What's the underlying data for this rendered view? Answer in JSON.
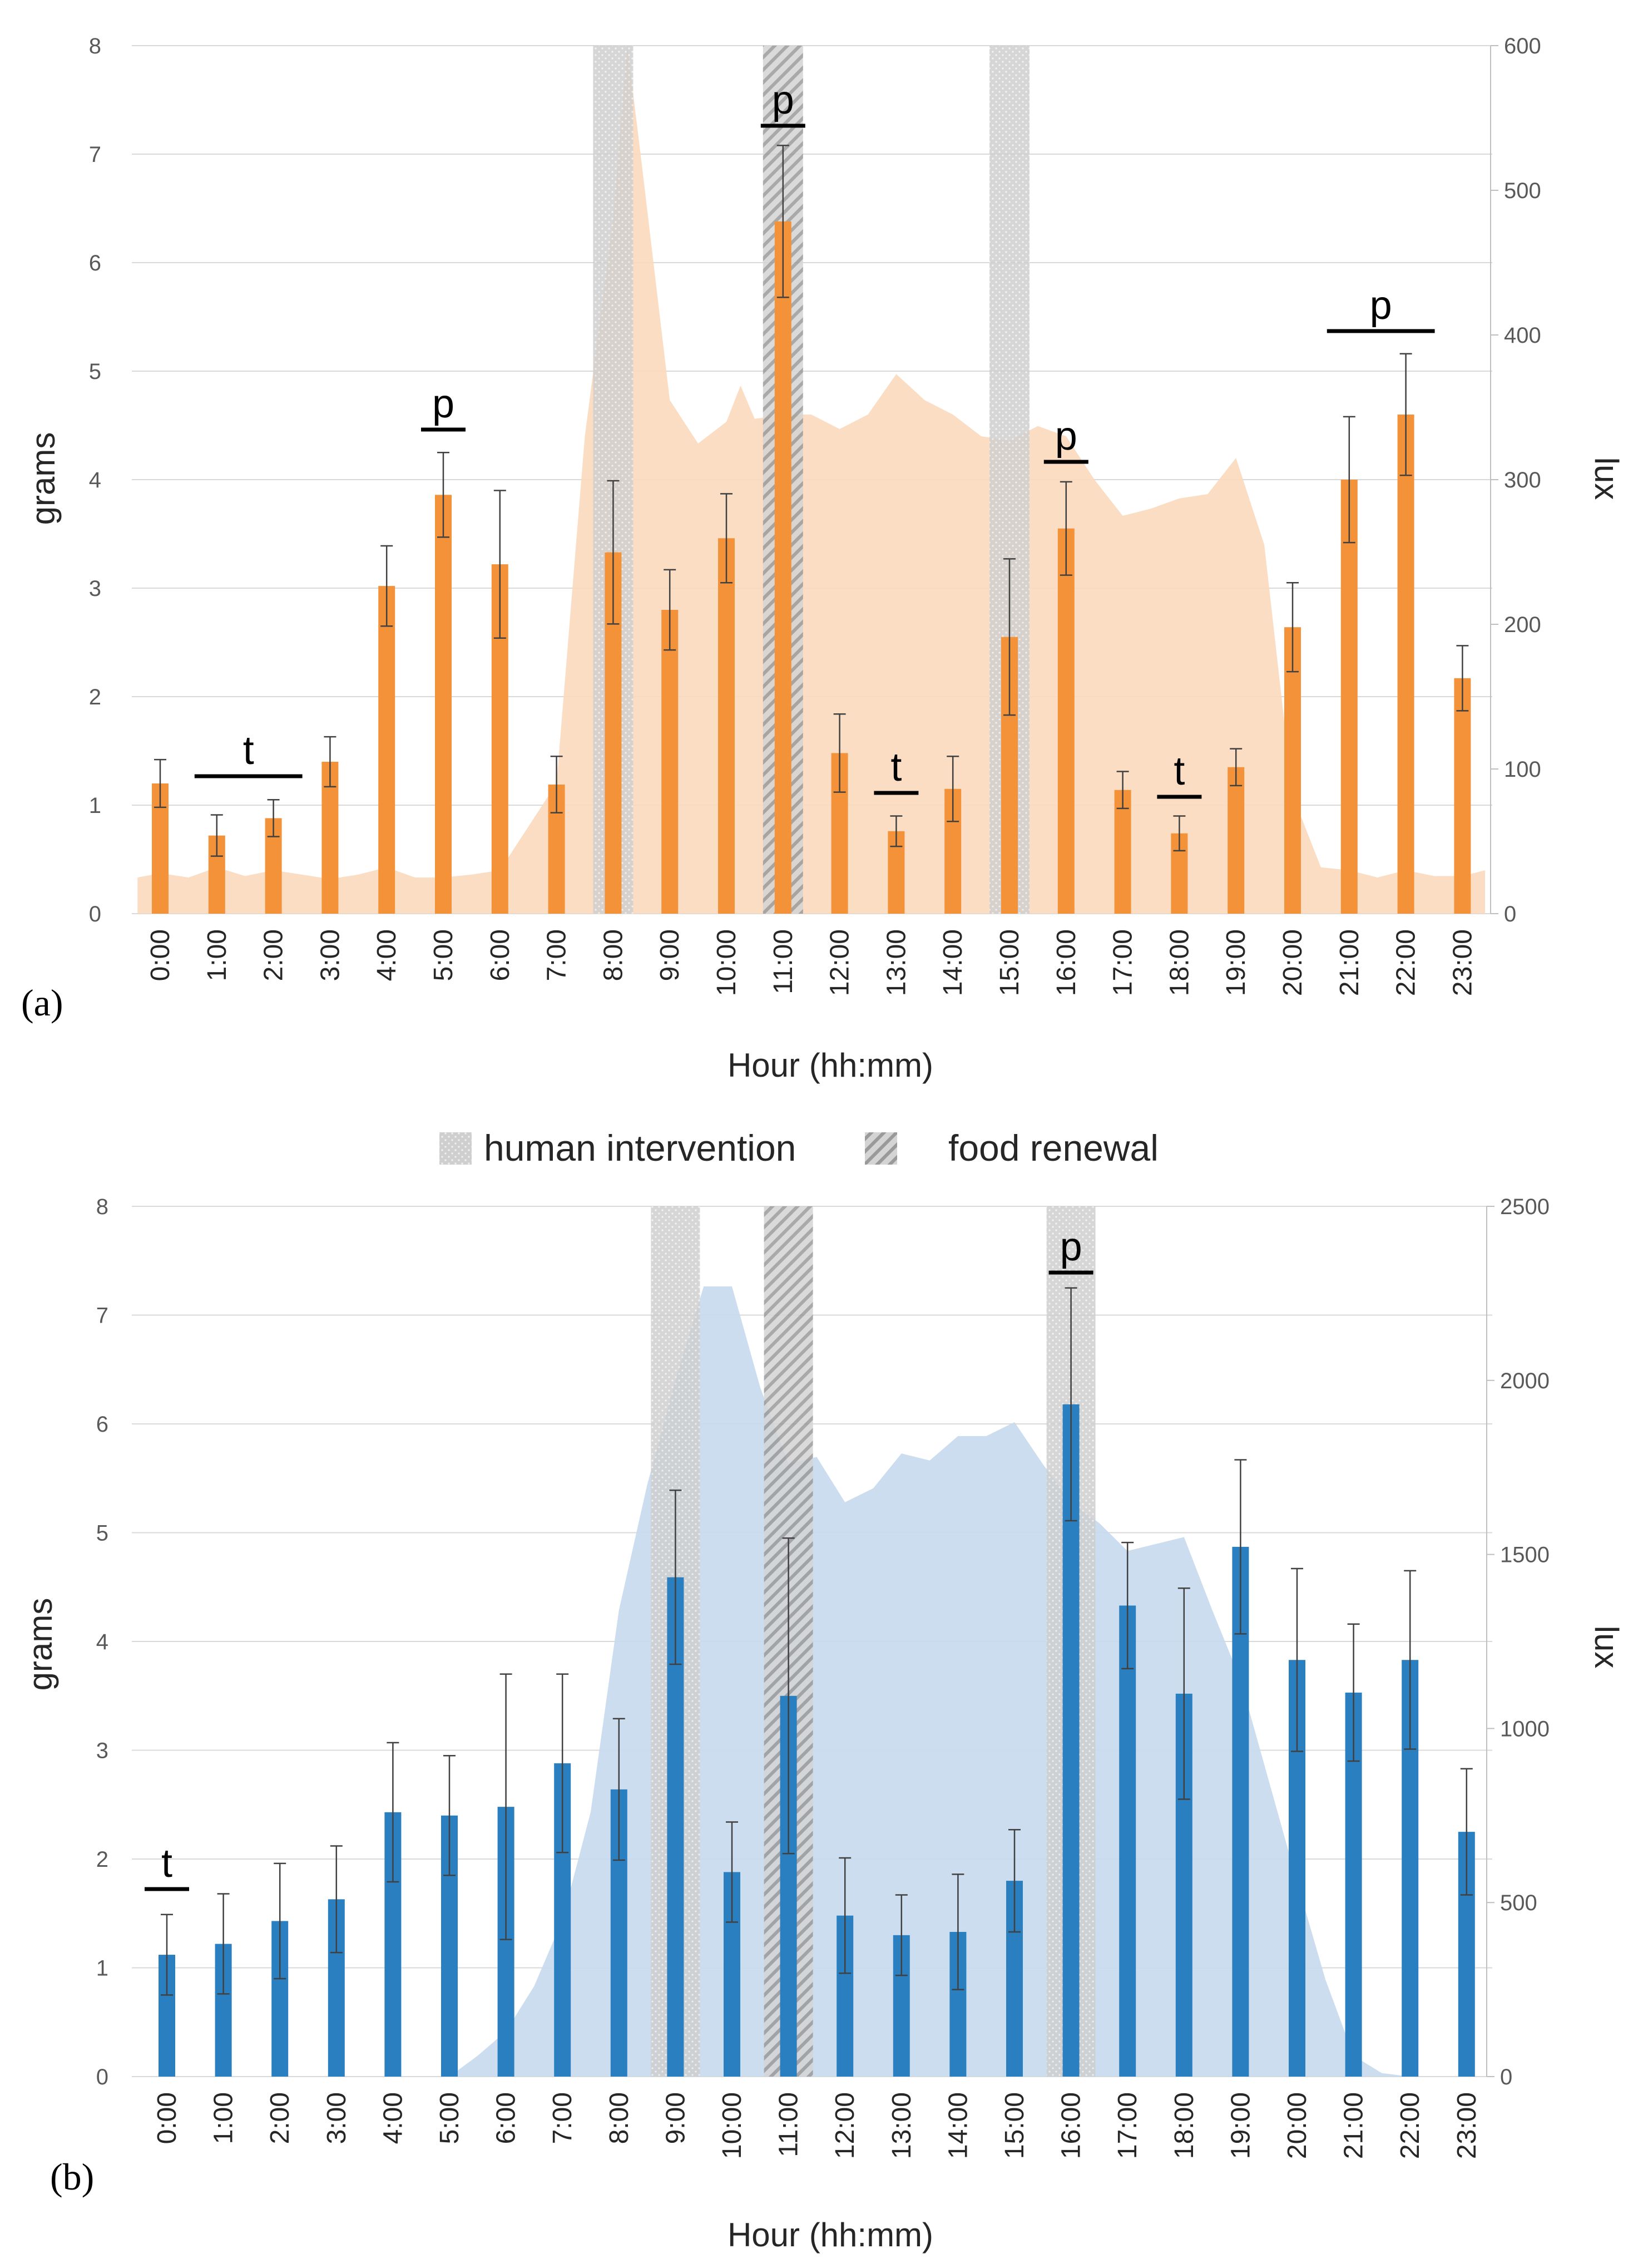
{
  "legend": {
    "human_intervention": "human intervention",
    "food_renewal": "food renewal"
  },
  "colors": {
    "orange_bar": "#f4923a",
    "orange_area": "#fbd9bd",
    "blue_bar": "#2a7fc0",
    "blue_area": "#c5d9ed",
    "grid": "#d9d9d9",
    "intervention": "#c8c8c8"
  },
  "chart_data": [
    {
      "panel_label": "(a)",
      "type": "bar",
      "title": "",
      "xlabel": "Hour (hh:mm)",
      "ylabel": "grams",
      "y2label": "lux",
      "ylim": [
        0,
        8
      ],
      "y2lim": [
        0,
        600
      ],
      "yticks": [
        "0",
        "1",
        "2",
        "3",
        "4",
        "5",
        "6",
        "7",
        "8"
      ],
      "y2ticks": [
        "0",
        "100",
        "200",
        "300",
        "400",
        "500",
        "600"
      ],
      "categories": [
        "0:00",
        "1:00",
        "2:00",
        "3:00",
        "4:00",
        "5:00",
        "6:00",
        "7:00",
        "8:00",
        "9:00",
        "10:00",
        "11:00",
        "12:00",
        "13:00",
        "14:00",
        "15:00",
        "16:00",
        "17:00",
        "18:00",
        "19:00",
        "20:00",
        "21:00",
        "22:00",
        "23:00"
      ],
      "series": [
        {
          "name": "grams",
          "values": [
            1.2,
            0.72,
            0.88,
            1.4,
            3.02,
            3.86,
            3.22,
            1.19,
            3.33,
            2.8,
            3.46,
            6.38,
            1.48,
            0.76,
            1.15,
            2.55,
            3.55,
            1.14,
            0.74,
            1.35,
            2.64,
            4.0,
            4.6,
            2.17
          ],
          "errors": [
            0.22,
            0.19,
            0.17,
            0.23,
            0.37,
            0.39,
            0.68,
            0.26,
            0.66,
            0.37,
            0.41,
            0.7,
            0.36,
            0.14,
            0.3,
            0.72,
            0.43,
            0.17,
            0.16,
            0.17,
            0.41,
            0.58,
            0.56,
            0.3
          ]
        }
      ],
      "lux": {
        "x": [
          -0.4,
          0,
          0.5,
          1,
          1.5,
          2,
          2.5,
          3,
          3.5,
          4,
          4.5,
          5,
          5.5,
          6,
          6.5,
          7,
          7.5,
          8,
          8.25,
          8.5,
          9,
          9.5,
          10,
          10.25,
          10.5,
          11,
          11.5,
          12,
          12.5,
          13,
          13.5,
          14,
          14.5,
          15,
          15.5,
          16,
          16.5,
          17,
          17.5,
          18,
          18.5,
          19,
          19.5,
          20,
          20.5,
          21,
          21.5,
          22,
          22.5,
          23,
          23.4
        ],
        "values": [
          25,
          28,
          25,
          32,
          26,
          30,
          27,
          24,
          27,
          32,
          25,
          25,
          27,
          30,
          60,
          90,
          330,
          480,
          600,
          520,
          355,
          325,
          340,
          365,
          342,
          345,
          345,
          335,
          345,
          373,
          355,
          345,
          330,
          327,
          337,
          330,
          300,
          275,
          280,
          287,
          290,
          315,
          255,
          82,
          32,
          30,
          25,
          30,
          26,
          26,
          30
        ]
      },
      "human_intervention_hours": [
        "8:00",
        "15:00"
      ],
      "food_renewal_hours": [
        "11:00"
      ],
      "annotations": [
        {
          "text": "t",
          "from": "1:00",
          "to": "2:00"
        },
        {
          "text": "p",
          "from": "5:00",
          "to": "5:00"
        },
        {
          "text": "p",
          "from": "11:00",
          "to": "11:00"
        },
        {
          "text": "t",
          "from": "13:00",
          "to": "13:00"
        },
        {
          "text": "p",
          "from": "16:00",
          "to": "16:00"
        },
        {
          "text": "t",
          "from": "18:00",
          "to": "18:00"
        },
        {
          "text": "p",
          "from": "21:00",
          "to": "22:00"
        }
      ]
    },
    {
      "panel_label": "(b)",
      "type": "bar",
      "title": "",
      "xlabel": "Hour (hh:mm)",
      "ylabel": "grams",
      "y2label": "lux",
      "ylim": [
        0,
        8
      ],
      "y2lim": [
        0,
        2500
      ],
      "yticks": [
        "0",
        "1",
        "2",
        "3",
        "4",
        "5",
        "6",
        "7",
        "8"
      ],
      "y2ticks": [
        "0",
        "500",
        "1000",
        "1500",
        "2000",
        "2500"
      ],
      "categories": [
        "0:00",
        "1:00",
        "2:00",
        "3:00",
        "4:00",
        "5:00",
        "6:00",
        "7:00",
        "8:00",
        "9:00",
        "10:00",
        "11:00",
        "12:00",
        "13:00",
        "14:00",
        "15:00",
        "16:00",
        "17:00",
        "18:00",
        "19:00",
        "20:00",
        "21:00",
        "22:00",
        "23:00"
      ],
      "series": [
        {
          "name": "grams",
          "values": [
            1.12,
            1.22,
            1.43,
            1.63,
            2.43,
            2.4,
            2.48,
            2.88,
            2.64,
            4.59,
            1.88,
            3.5,
            1.48,
            1.3,
            1.33,
            1.8,
            6.18,
            4.33,
            3.52,
            4.87,
            3.83,
            3.53,
            3.83,
            2.25
          ],
          "errors": [
            0.37,
            0.46,
            0.53,
            0.49,
            0.64,
            0.55,
            1.22,
            0.82,
            0.65,
            0.8,
            0.46,
            1.45,
            0.53,
            0.37,
            0.53,
            0.47,
            1.07,
            0.58,
            0.97,
            0.8,
            0.84,
            0.63,
            0.82,
            0.58
          ]
        }
      ],
      "lux": {
        "x": [
          -0.4,
          0,
          1,
          2,
          3,
          4,
          5,
          5.5,
          6,
          6.5,
          7,
          7.5,
          8,
          8.5,
          9,
          9.5,
          10,
          10.5,
          11,
          11.5,
          12,
          12.5,
          13,
          13.5,
          14,
          14.5,
          15,
          15.5,
          16,
          16.5,
          17,
          17.5,
          18,
          18.5,
          19,
          19.5,
          20,
          20.5,
          21,
          21.5,
          22,
          22.5,
          23,
          23.4
        ],
        "values": [
          0,
          0,
          0,
          0,
          0,
          0,
          0,
          60,
          130,
          260,
          450,
          760,
          1340,
          1700,
          2000,
          2270,
          2270,
          1980,
          1760,
          1780,
          1650,
          1690,
          1790,
          1770,
          1840,
          1840,
          1880,
          1760,
          1650,
          1590,
          1510,
          1530,
          1550,
          1340,
          1140,
          850,
          560,
          280,
          60,
          10,
          0,
          0,
          0,
          0
        ]
      },
      "human_intervention_hours": [
        "9:00",
        "16:00"
      ],
      "food_renewal_hours": [
        "11:00"
      ],
      "annotations": [
        {
          "text": "t",
          "from": "0:00",
          "to": "0:00"
        },
        {
          "text": "p",
          "from": "16:00",
          "to": "16:00"
        }
      ]
    }
  ]
}
